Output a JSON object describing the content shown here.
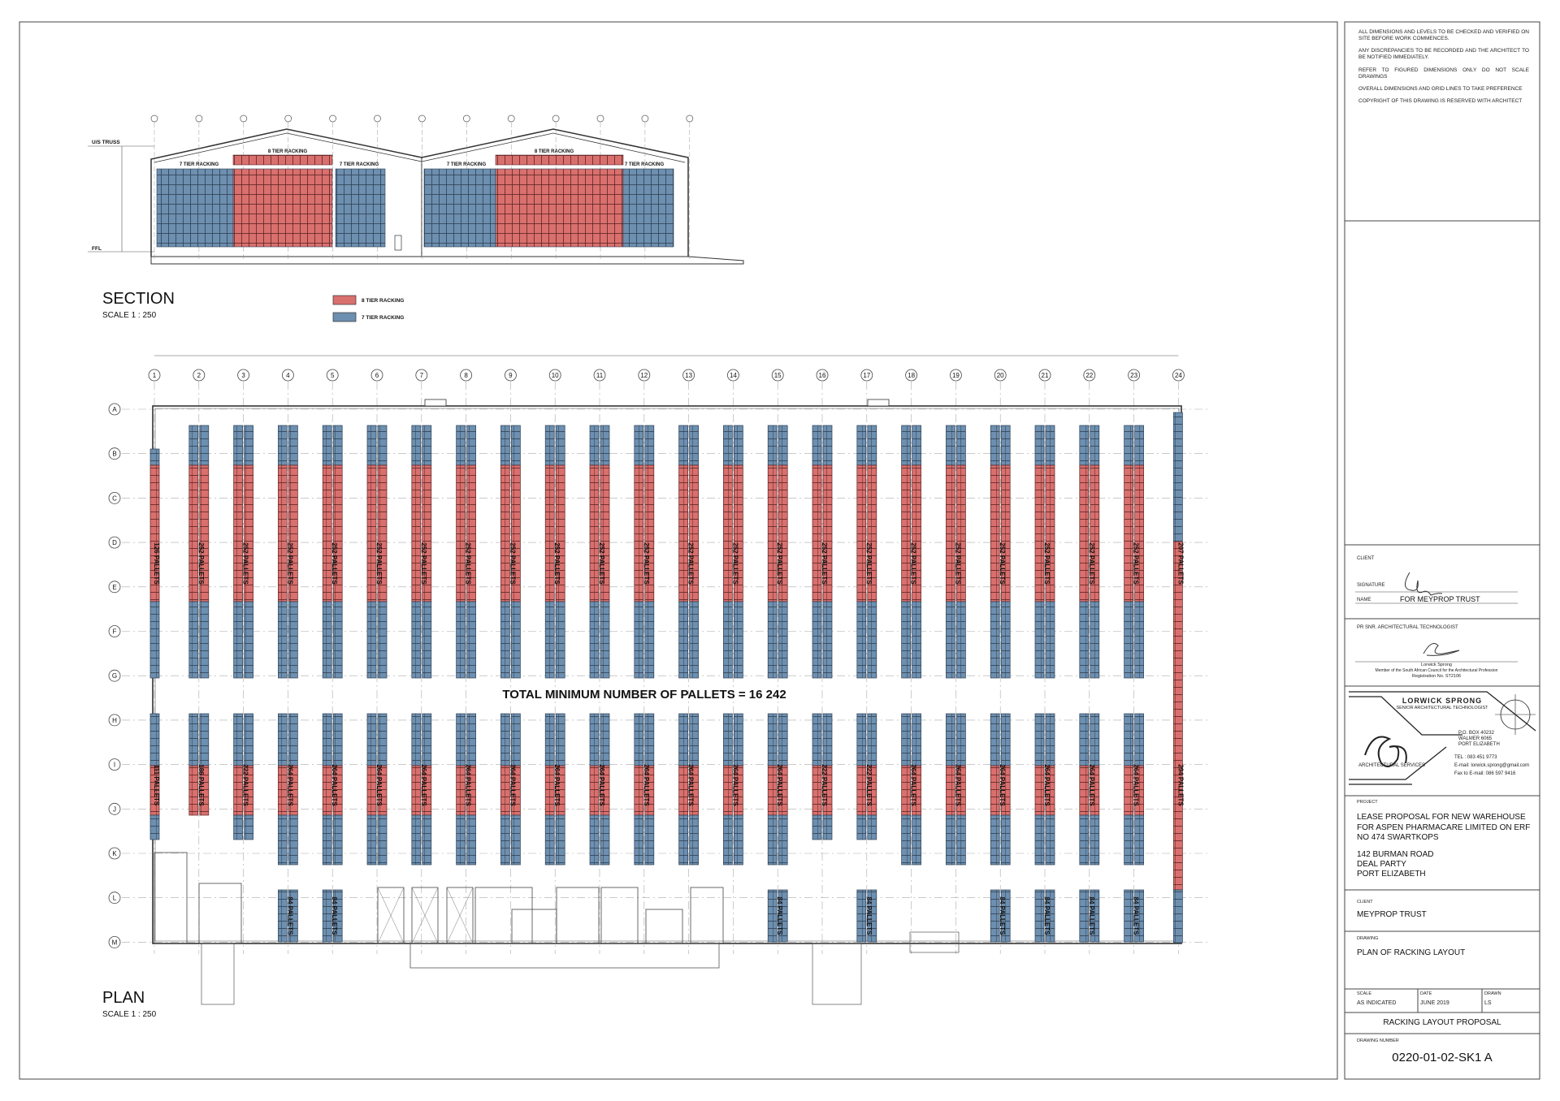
{
  "notes": [
    "ALL DIMENSIONS AND LEVELS TO BE CHECKED AND VERIFIED ON SITE BEFORE WORK COMMENCES.",
    "ANY DISCREPANCIES TO BE RECORDED AND THE ARCHITECT TO BE NOTIFIED IMMEDIATELY.",
    "REFER TO FIGURED DIMENSIONS ONLY DO NOT SCALE DRAWINGS",
    "OVERALL DIMENSIONS AND GRID LINES TO TAKE PREFERENCE",
    "COPYRIGHT OF THIS DRAWING IS RESERVED WITH ARCHITECT"
  ],
  "section": {
    "title": "SECTION",
    "scale": "SCALE 1 : 250",
    "truss": "U/S TRUSS",
    "ffl": "FFL",
    "rack_labels": [
      "7 TIER RACKING",
      "8 TIER RACKING",
      "7 TIER RACKING",
      "7 TIER RACKING",
      "8 TIER RACKING",
      "7 TIER RACKING"
    ]
  },
  "legend": [
    {
      "label": "8 TIER RACKING",
      "color": "#d9706e"
    },
    {
      "label": "7 TIER RACKING",
      "color": "#6d8fb0"
    }
  ],
  "plan": {
    "title": "PLAN",
    "scale": "SCALE 1 : 250",
    "total": "TOTAL MINIMUM NUMBER OF PALLETS =  16 242",
    "grid_columns": [
      "1",
      "2",
      "3",
      "4",
      "5",
      "6",
      "7",
      "8",
      "9",
      "10",
      "11",
      "12",
      "13",
      "14",
      "15",
      "16",
      "17",
      "18",
      "19",
      "20",
      "21",
      "22",
      "23",
      "24"
    ],
    "grid_rows": [
      "A",
      "B",
      "C",
      "D",
      "E",
      "F",
      "G",
      "H",
      "I",
      "J",
      "K",
      "L",
      "M"
    ],
    "upper_labels": [
      "126 PALLETS",
      "252 PALLETS",
      "252 PALLETS",
      "252 PALLETS",
      "252 PALLETS",
      "252 PALLETS",
      "252 PALLETS",
      "252 PALLETS",
      "252 PALLETS",
      "252 PALLETS",
      "252 PALLETS",
      "252 PALLETS",
      "252 PALLETS",
      "252 PALLETS",
      "252 PALLETS",
      "252 PALLETS",
      "252 PALLETS",
      "252 PALLETS",
      "252 PALLETS",
      "252 PALLETS",
      "252 PALLETS",
      "252 PALLETS",
      "252 PALLETS",
      "207 PALLETS"
    ],
    "lower_labels": [
      "111 PALLETS",
      "186 PALLETS",
      "222 PALLETS",
      "264 PALLETS",
      "264 PALLETS",
      "264 PALLETS",
      "264 PALLETS",
      "264 PALLETS",
      "264 PALLETS",
      "264 PALLETS",
      "264 PALLETS",
      "264 PALLETS",
      "264 PALLETS",
      "264 PALLETS",
      "264 PALLETS",
      "222 PALLETS",
      "222 PALLETS",
      "264 PALLETS",
      "264 PALLETS",
      "264 PALLETS",
      "264 PALLETS",
      "264 PALLETS",
      "264 PALLETS",
      "294 PALLETS"
    ],
    "dock_labels": [
      null,
      null,
      null,
      "84 PALLETS",
      "84 PALLETS",
      null,
      null,
      null,
      null,
      null,
      null,
      null,
      null,
      null,
      "84 PALLETS",
      null,
      "84 PALLETS",
      null,
      null,
      "84 PALLETS",
      "84 PALLETS",
      "84 PALLETS",
      "84 PALLETS",
      null
    ]
  },
  "title_block": {
    "client_sign": {
      "label": "CLIENT",
      "signature": "SIGNATURE",
      "name": "NAME",
      "name_value": "FOR MEYPROP TRUST"
    },
    "architect": {
      "heading": "PR SNR. ARCHITECTURAL TECHNOLOGIST",
      "name": "Lorwick Sprong",
      "member": "Member of the South African Council for the Architectural Profession",
      "registration": "Registration No. ST2106"
    },
    "firm": {
      "name": "LORWICK SPRONG",
      "role": "SENIOR ARCHITECTURAL TECHNOLOGIST",
      "address": [
        "P.O. BOX 40232",
        "WALMER 6065",
        "PORT ELIZABETH"
      ],
      "contact": [
        "TEL : 083 451 9773",
        "E-mail: lorwick.sprong@gmail.com",
        "Fax to E-mail: 086 597 9416"
      ],
      "services": "ARCHITECTURAL SERVICES"
    },
    "project_label": "PROJECT",
    "project": "LEASE PROPOSAL FOR NEW WAREHOUSE FOR ASPEN PHARMACARE LIMITED ON ERF NO 474 SWARTKOPS",
    "address": [
      "142 BURMAN ROAD",
      "DEAL PARTY",
      "PORT ELIZABETH"
    ],
    "client_label": "CLIENT",
    "client": "MEYPROP TRUST",
    "drawing_label": "DRAWING",
    "drawing": "PLAN OF RACKING LAYOUT",
    "scale_label": "SCALE",
    "scale": "AS INDICATED",
    "date_label": "DATE",
    "date": "JUNE 2019",
    "drawn_label": "DRAWN",
    "drawn": "LS",
    "subject": "RACKING LAYOUT PROPOSAL",
    "number_label": "DRAWING NUMBER",
    "number": "0220-01-02-SK1 A"
  }
}
